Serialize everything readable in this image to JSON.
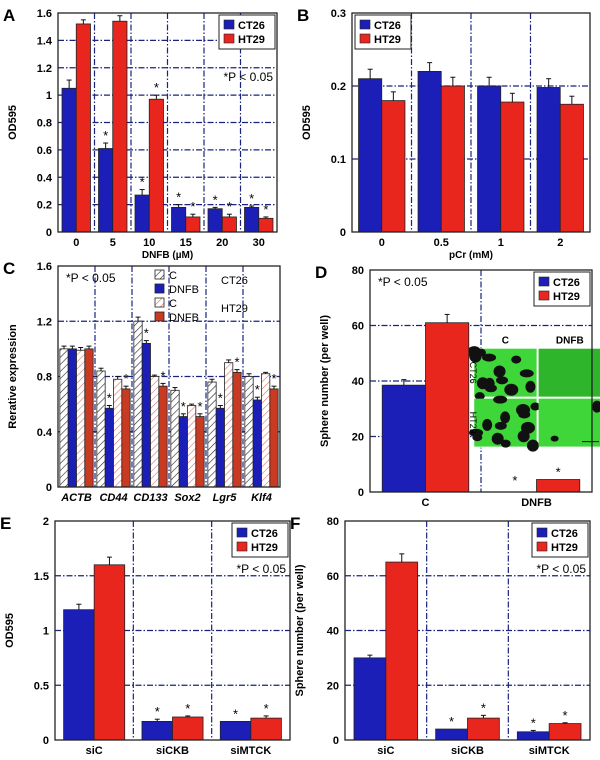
{
  "colors": {
    "blue": "#1b1fb8",
    "red": "#e8261e",
    "dark_red": "#c93a22",
    "grid": "#1a237e",
    "inset_green": "#3fd63a"
  },
  "chart_data": [
    {
      "panel": "A",
      "type": "bar",
      "ylabel": "OD595",
      "xlabel": "DNFB (µM)",
      "ylim": [
        0,
        1.6
      ],
      "yticks": [
        "0",
        "0.2",
        "0.4",
        "0.6",
        "0.8",
        "1",
        "1.2",
        "1.4",
        "1.6"
      ],
      "categories": [
        "0",
        "5",
        "10",
        "15",
        "20",
        "30"
      ],
      "annotation": "*P < 0.05",
      "legend_placement": "top-right",
      "grid": true,
      "series": [
        {
          "name": "CT26",
          "color": "blue",
          "values": [
            1.05,
            0.61,
            0.27,
            0.18,
            0.17,
            0.18
          ],
          "errors": [
            0.06,
            0.04,
            0.04,
            0.02,
            0.01,
            0.01
          ],
          "stars": [
            false,
            true,
            true,
            true,
            true,
            true
          ]
        },
        {
          "name": "HT29",
          "color": "red",
          "values": [
            1.52,
            1.54,
            0.97,
            0.11,
            0.11,
            0.1
          ],
          "errors": [
            0.03,
            0.04,
            0.03,
            0.02,
            0.02,
            0.01
          ],
          "stars": [
            false,
            false,
            true,
            true,
            true,
            true
          ]
        }
      ]
    },
    {
      "panel": "B",
      "type": "bar",
      "ylabel": "OD595",
      "xlabel": "pCr (mM)",
      "ylim": [
        0,
        0.3
      ],
      "yticks": [
        "0",
        "0.1",
        "0.2",
        "0.3"
      ],
      "categories": [
        "0",
        "0.5",
        "1",
        "2"
      ],
      "annotation": "",
      "legend_placement": "top-left",
      "grid": true,
      "series": [
        {
          "name": "CT26",
          "color": "blue",
          "values": [
            0.21,
            0.22,
            0.2,
            0.198
          ],
          "errors": [
            0.013,
            0.012,
            0.012,
            0.012
          ],
          "stars": [
            false,
            false,
            false,
            false
          ]
        },
        {
          "name": "HT29",
          "color": "red",
          "values": [
            0.18,
            0.2,
            0.178,
            0.175
          ],
          "errors": [
            0.012,
            0.012,
            0.012,
            0.011
          ],
          "stars": [
            false,
            false,
            false,
            false
          ]
        }
      ]
    },
    {
      "panel": "C",
      "type": "bar",
      "ylabel": "Rerative expression",
      "xlabel": "",
      "ylim": [
        0,
        1.6
      ],
      "yticks": [
        "0",
        "0.4",
        "0.8",
        "1.2",
        "1.6"
      ],
      "categories": [
        "ACTB",
        "CD44",
        "CD133",
        "Sox2",
        "Lgr5",
        "Klf4"
      ],
      "categories_italic": true,
      "annotation": "*P < 0.05",
      "legend_placement": "top-right",
      "grid": true,
      "legend_groups": [
        "CT26",
        "HT29"
      ],
      "series": [
        {
          "name": "C",
          "color": "blue",
          "hatched": true,
          "values": [
            1.0,
            0.84,
            1.2,
            0.7,
            0.76,
            0.8
          ],
          "errors": [
            0.02,
            0.02,
            0.03,
            0.02,
            0.02,
            0.02
          ],
          "stars": [
            false,
            false,
            false,
            false,
            false,
            false
          ]
        },
        {
          "name": "DNFB",
          "color": "blue",
          "values": [
            1.0,
            0.57,
            1.04,
            0.51,
            0.57,
            0.63
          ],
          "errors": [
            0.02,
            0.02,
            0.02,
            0.02,
            0.02,
            0.02
          ],
          "stars": [
            false,
            true,
            true,
            true,
            true,
            true
          ]
        },
        {
          "name": "C",
          "color": "red",
          "hatched": true,
          "values": [
            0.99,
            0.78,
            0.8,
            0.59,
            0.9,
            0.82
          ],
          "errors": [
            0.02,
            0.02,
            0.01,
            0.01,
            0.02,
            0.01
          ],
          "stars": [
            false,
            false,
            false,
            false,
            false,
            false
          ]
        },
        {
          "name": "DNFB",
          "color": "dark_red",
          "values": [
            1.0,
            0.71,
            0.73,
            0.51,
            0.83,
            0.71
          ],
          "errors": [
            0.02,
            0.02,
            0.02,
            0.02,
            0.02,
            0.02
          ],
          "stars": [
            false,
            true,
            true,
            true,
            true,
            true
          ]
        }
      ]
    },
    {
      "panel": "D",
      "type": "bar",
      "ylabel": "Sphere number (per well)",
      "xlabel": "",
      "ylim": [
        0,
        80
      ],
      "yticks": [
        "0",
        "20",
        "40",
        "60",
        "80"
      ],
      "categories": [
        "C",
        "DNFB"
      ],
      "annotation": "*P < 0.05",
      "legend_placement": "top-right",
      "grid": true,
      "inset": {
        "col_labels": [
          "C",
          "DNFB"
        ],
        "row_labels": [
          "CT26",
          "HT29"
        ]
      },
      "series": [
        {
          "name": "CT26",
          "color": "blue",
          "values": [
            38.5,
            0
          ],
          "errors": [
            2,
            0
          ],
          "stars": [
            false,
            true
          ]
        },
        {
          "name": "HT29",
          "color": "red",
          "values": [
            61,
            4.5
          ],
          "errors": [
            3,
            0
          ],
          "stars": [
            false,
            true
          ]
        }
      ]
    },
    {
      "panel": "E",
      "type": "bar",
      "ylabel": "OD595",
      "xlabel": "",
      "ylim": [
        0,
        2
      ],
      "yticks": [
        "0",
        "0.5",
        "1",
        "1.5",
        "2"
      ],
      "categories": [
        "siC",
        "siCKB",
        "siMTCK"
      ],
      "annotation": "*P < 0.05",
      "legend_placement": "top-right",
      "grid": true,
      "series": [
        {
          "name": "CT26",
          "color": "blue",
          "values": [
            1.19,
            0.17,
            0.17
          ],
          "errors": [
            0.05,
            0.02,
            0.0
          ],
          "stars": [
            false,
            true,
            true
          ]
        },
        {
          "name": "HT29",
          "color": "red",
          "values": [
            1.6,
            0.21,
            0.2
          ],
          "errors": [
            0.07,
            0.01,
            0.02
          ],
          "stars": [
            false,
            true,
            true
          ]
        }
      ]
    },
    {
      "panel": "F",
      "type": "bar",
      "ylabel": "Sphere number (per well)",
      "xlabel": "",
      "ylim": [
        0,
        80
      ],
      "yticks": [
        "0",
        "20",
        "40",
        "60",
        "80"
      ],
      "categories": [
        "siC",
        "siCKB",
        "siMTCK"
      ],
      "annotation": "*P < 0.05",
      "legend_placement": "top-right",
      "grid": true,
      "series": [
        {
          "name": "CT26",
          "color": "blue",
          "values": [
            30,
            4,
            3
          ],
          "errors": [
            1,
            0,
            0.5
          ],
          "stars": [
            false,
            true,
            true
          ]
        },
        {
          "name": "HT29",
          "color": "red",
          "values": [
            65,
            8,
            6
          ],
          "errors": [
            3,
            1,
            0.3
          ],
          "stars": [
            false,
            true,
            true
          ]
        }
      ]
    }
  ]
}
